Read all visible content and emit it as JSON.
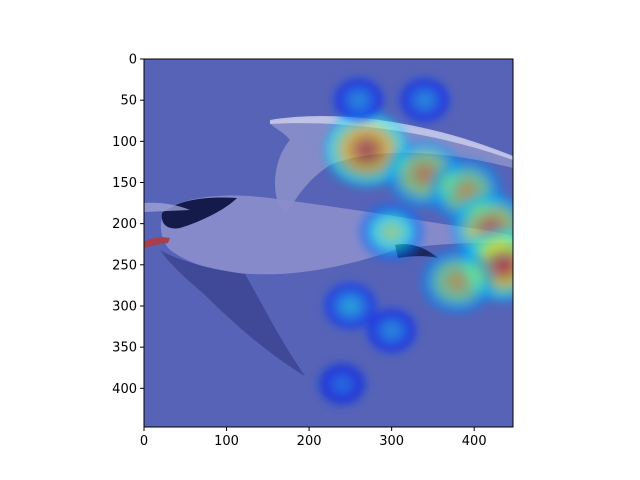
{
  "chart_data": {
    "type": "heatmap",
    "title": "",
    "xlabel": "",
    "ylabel": "",
    "xlim": [
      0,
      447
    ],
    "ylim": [
      447,
      0
    ],
    "xticks": [
      0,
      100,
      200,
      300,
      400
    ],
    "yticks": [
      0,
      50,
      100,
      150,
      200,
      250,
      300,
      350,
      400
    ],
    "background_image": "bird-in-flight-tern",
    "colormap": "jet",
    "overlay_alpha": 0.55,
    "grid": false,
    "hotspots": [
      {
        "x": 270,
        "y": 110,
        "intensity": 0.95
      },
      {
        "x": 340,
        "y": 140,
        "intensity": 0.75
      },
      {
        "x": 390,
        "y": 160,
        "intensity": 0.7
      },
      {
        "x": 420,
        "y": 205,
        "intensity": 0.8
      },
      {
        "x": 435,
        "y": 250,
        "intensity": 0.9
      },
      {
        "x": 380,
        "y": 270,
        "intensity": 0.7
      },
      {
        "x": 300,
        "y": 210,
        "intensity": 0.55
      },
      {
        "x": 250,
        "y": 300,
        "intensity": 0.35
      },
      {
        "x": 300,
        "y": 330,
        "intensity": 0.3
      },
      {
        "x": 240,
        "y": 395,
        "intensity": 0.25
      },
      {
        "x": 260,
        "y": 50,
        "intensity": 0.3
      },
      {
        "x": 340,
        "y": 50,
        "intensity": 0.3
      }
    ]
  }
}
